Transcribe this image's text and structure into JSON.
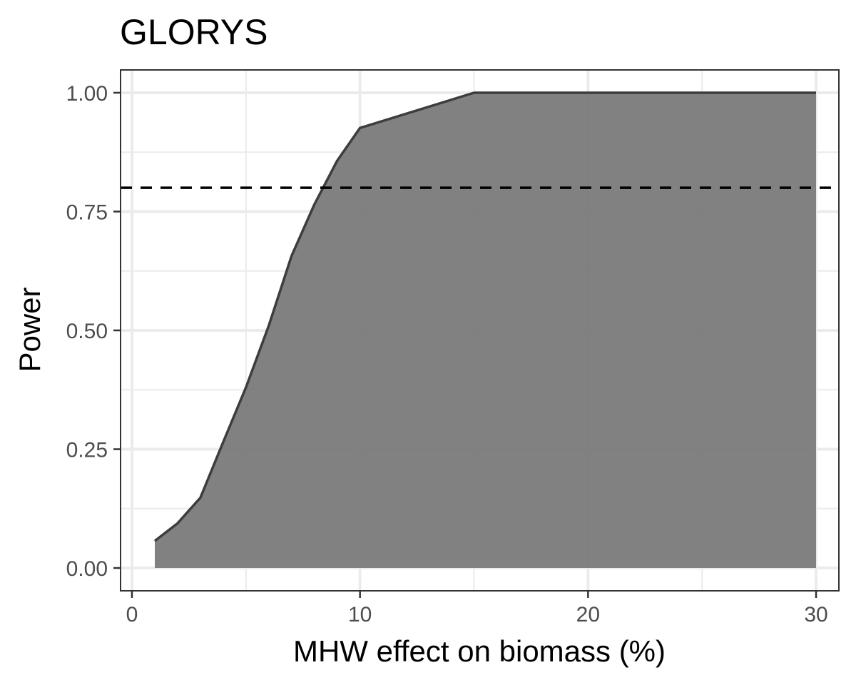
{
  "chart_data": {
    "type": "area",
    "title": "GLORYS",
    "xlabel": "MHW effect on biomass (%)",
    "ylabel": "Power",
    "xlim": [
      -0.5,
      31
    ],
    "ylim": [
      -0.048,
      1.048
    ],
    "xticks": [
      0,
      10,
      20,
      30
    ],
    "xtick_labels": [
      "0",
      "10",
      "20",
      "30"
    ],
    "yticks": [
      0,
      0.25,
      0.5,
      0.75,
      1
    ],
    "ytick_labels": [
      "0.00",
      "0.25",
      "0.50",
      "0.75",
      "1.00"
    ],
    "x_minor_ticks": [
      5,
      15,
      25
    ],
    "y_minor_ticks": [
      0.125,
      0.375,
      0.625,
      0.875
    ],
    "grid": true,
    "threshold": 0.8,
    "series": [
      {
        "x": [
          1,
          2,
          3,
          4,
          5,
          6,
          7,
          8,
          9,
          10,
          15,
          20,
          25,
          30
        ],
        "values": [
          0.057,
          0.094,
          0.148,
          0.265,
          0.38,
          0.51,
          0.657,
          0.765,
          0.857,
          0.926,
          1.0,
          1.0,
          1.0,
          1.0
        ]
      }
    ],
    "colors": {
      "fill": "#7a7a7a",
      "line": "#3d3d3d",
      "grid": "#ebebeb",
      "border": "#333333",
      "threshold": "#000000"
    }
  }
}
